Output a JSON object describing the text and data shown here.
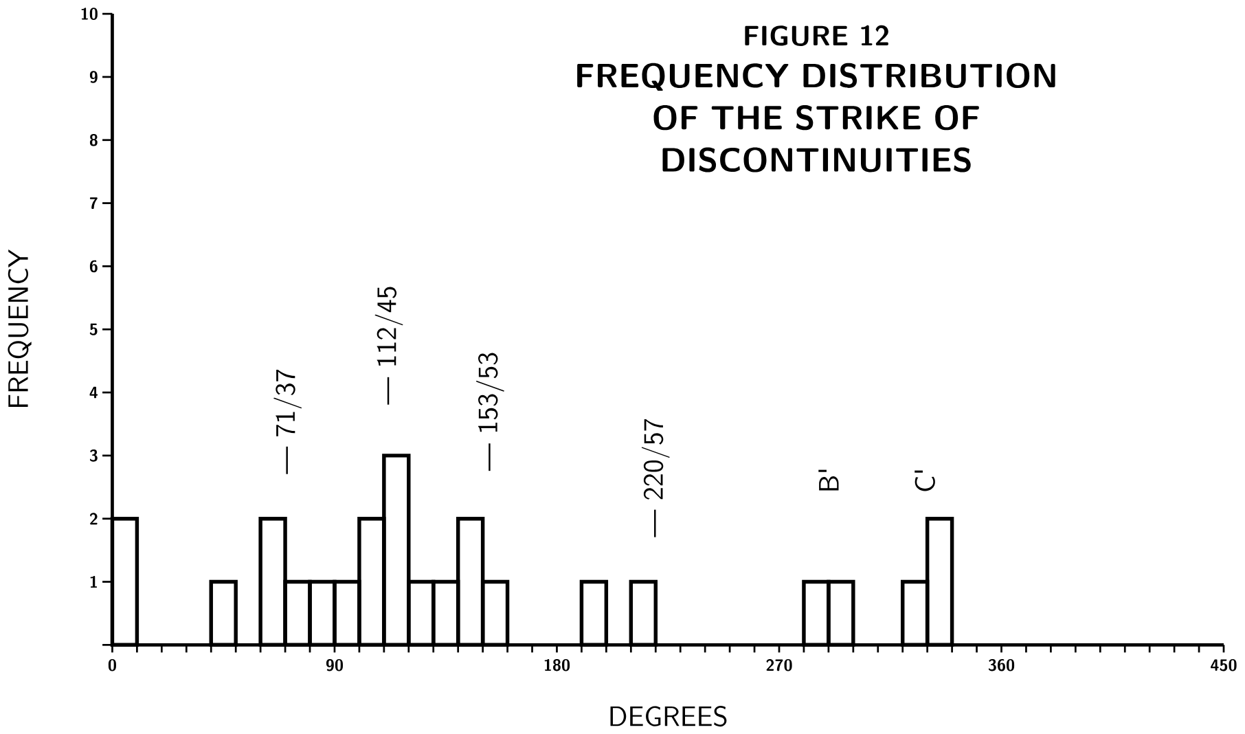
{
  "chart_data": {
    "type": "histogram",
    "title": "FIGURE 12",
    "subtitle": "FREQUENCY DISTRIBUTION OF THE STRIKE OF DISCONTINUITIES",
    "xlabel": "DEGREES",
    "ylabel": "FREQUENCY",
    "bins": [
      0,
      10,
      20,
      30,
      40,
      50,
      60,
      70,
      80,
      90,
      100,
      110,
      120,
      130,
      140,
      150,
      160,
      170,
      180,
      190,
      200,
      210,
      220,
      230,
      240,
      250,
      260,
      270,
      280,
      290,
      300,
      310,
      320,
      330,
      340
    ],
    "values": [
      2,
      0,
      0,
      0,
      1,
      0,
      2,
      1,
      1,
      1,
      2,
      3,
      1,
      1,
      2,
      1,
      0,
      0,
      0,
      1,
      0,
      1,
      0,
      0,
      0,
      0,
      0,
      0,
      1,
      1,
      0,
      0,
      1,
      2
    ],
    "color": "#000000",
    "xlim": [
      0,
      450
    ],
    "ylim": [
      0,
      10
    ],
    "xticks": [
      0,
      {
        "value": 10,
        "label": null
      },
      {
        "value": 20,
        "label": null
      },
      {
        "value": 30,
        "label": null
      },
      {
        "value": 40,
        "label": null
      },
      {
        "value": 50,
        "label": null
      },
      {
        "value": 60,
        "label": null
      },
      {
        "value": 70,
        "label": null
      },
      {
        "value": 80,
        "label": null
      },
      90,
      {
        "value": 100,
        "label": null
      },
      {
        "value": 110,
        "label": null
      },
      {
        "value": 120,
        "label": null
      },
      {
        "value": 130,
        "label": null
      },
      {
        "value": 140,
        "label": null
      },
      {
        "value": 150,
        "label": null
      },
      {
        "value": 160,
        "label": null
      },
      {
        "value": 170,
        "label": null
      },
      180,
      {
        "value": 190,
        "label": null
      },
      {
        "value": 200,
        "label": null
      },
      {
        "value": 210,
        "label": null
      },
      {
        "value": 220,
        "label": null
      },
      {
        "value": 230,
        "label": null
      },
      {
        "value": 240,
        "label": null
      },
      {
        "value": 250,
        "label": null
      },
      {
        "value": 260,
        "label": null
      },
      270,
      {
        "value": 280,
        "label": null
      },
      {
        "value": 290,
        "label": null
      },
      {
        "value": 300,
        "label": null
      },
      {
        "value": 310,
        "label": null
      },
      {
        "value": 320,
        "label": null
      },
      {
        "value": 330,
        "label": null
      },
      {
        "value": 340,
        "label": null
      },
      {
        "value": 350,
        "label": null
      },
      360,
      {
        "value": 370,
        "label": null
      },
      {
        "value": 380,
        "label": null
      },
      {
        "value": 390,
        "label": null
      },
      {
        "value": 400,
        "label": null
      },
      {
        "value": 410,
        "label": null
      },
      {
        "value": 420,
        "label": null
      },
      {
        "value": 430,
        "label": null
      },
      {
        "value": 440,
        "label": null
      },
      450
    ],
    "yticks": [
      {
        "value": 0,
        "label": null
      },
      1,
      2,
      3,
      4,
      5,
      6,
      7,
      8,
      9,
      10
    ],
    "annotations": [
      "— 71/37",
      "— 112/45",
      "— 153/53",
      "— 220/57",
      "B'",
      "C'"
    ],
    "grid": false
  }
}
